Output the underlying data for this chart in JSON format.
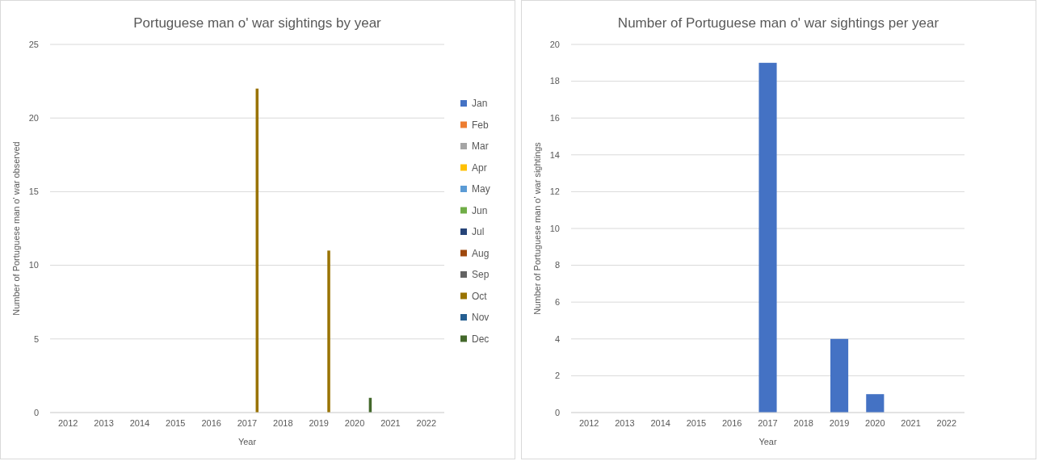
{
  "chart_data": [
    {
      "type": "bar",
      "title": "Portuguese man o' war sightings by year",
      "xlabel": "Year",
      "ylabel": "Number of Portuguese man o' war observed",
      "categories": [
        "2012",
        "2013",
        "2014",
        "2015",
        "2016",
        "2017",
        "2018",
        "2019",
        "2020",
        "2021",
        "2022"
      ],
      "ylim": [
        0,
        25
      ],
      "yticks": [
        0,
        5,
        10,
        15,
        20,
        25
      ],
      "grid": "y",
      "legend": "right",
      "series": [
        {
          "name": "Jan",
          "color": "#4472c4",
          "values": [
            0,
            0,
            0,
            0,
            0,
            0,
            0,
            0,
            0,
            0,
            0
          ]
        },
        {
          "name": "Feb",
          "color": "#ed7d31",
          "values": [
            0,
            0,
            0,
            0,
            0,
            0,
            0,
            0,
            0,
            0,
            0
          ]
        },
        {
          "name": "Mar",
          "color": "#a5a5a5",
          "values": [
            0,
            0,
            0,
            0,
            0,
            0,
            0,
            0,
            0,
            0,
            0
          ]
        },
        {
          "name": "Apr",
          "color": "#ffc000",
          "values": [
            0,
            0,
            0,
            0,
            0,
            0,
            0,
            0,
            0,
            0,
            0
          ]
        },
        {
          "name": "May",
          "color": "#5b9bd5",
          "values": [
            0,
            0,
            0,
            0,
            0,
            0,
            0,
            0,
            0,
            0,
            0
          ]
        },
        {
          "name": "Jun",
          "color": "#70ad47",
          "values": [
            0,
            0,
            0,
            0,
            0,
            0,
            0,
            0,
            0,
            0,
            0
          ]
        },
        {
          "name": "Jul",
          "color": "#264478",
          "values": [
            0,
            0,
            0,
            0,
            0,
            0,
            0,
            0,
            0,
            0,
            0
          ]
        },
        {
          "name": "Aug",
          "color": "#9e480e",
          "values": [
            0,
            0,
            0,
            0,
            0,
            0,
            0,
            0,
            0,
            0,
            0
          ]
        },
        {
          "name": "Sep",
          "color": "#636363",
          "values": [
            0,
            0,
            0,
            0,
            0,
            0,
            0,
            0,
            0,
            0,
            0
          ]
        },
        {
          "name": "Oct",
          "color": "#997300",
          "values": [
            0,
            0,
            0,
            0,
            0,
            22,
            0,
            11,
            0,
            0,
            0
          ]
        },
        {
          "name": "Nov",
          "color": "#255e91",
          "values": [
            0,
            0,
            0,
            0,
            0,
            0,
            0,
            0,
            0,
            0,
            0
          ]
        },
        {
          "name": "Dec",
          "color": "#43682b",
          "values": [
            0,
            0,
            0,
            0,
            0,
            0,
            0,
            0,
            1,
            0,
            0
          ]
        }
      ]
    },
    {
      "type": "bar",
      "title": "Number of Portuguese man o' war sightings per year",
      "xlabel": "Year",
      "ylabel": "Number of Portuguese man o' war sightings",
      "categories": [
        "2012",
        "2013",
        "2014",
        "2015",
        "2016",
        "2017",
        "2018",
        "2019",
        "2020",
        "2021",
        "2022"
      ],
      "ylim": [
        0,
        20
      ],
      "yticks": [
        0,
        2,
        4,
        6,
        8,
        10,
        12,
        14,
        16,
        18,
        20
      ],
      "grid": "y",
      "legend": false,
      "series": [
        {
          "color": "#4472c4",
          "values": [
            0,
            0,
            0,
            0,
            0,
            19,
            0,
            4,
            1,
            0,
            0
          ]
        }
      ]
    }
  ]
}
